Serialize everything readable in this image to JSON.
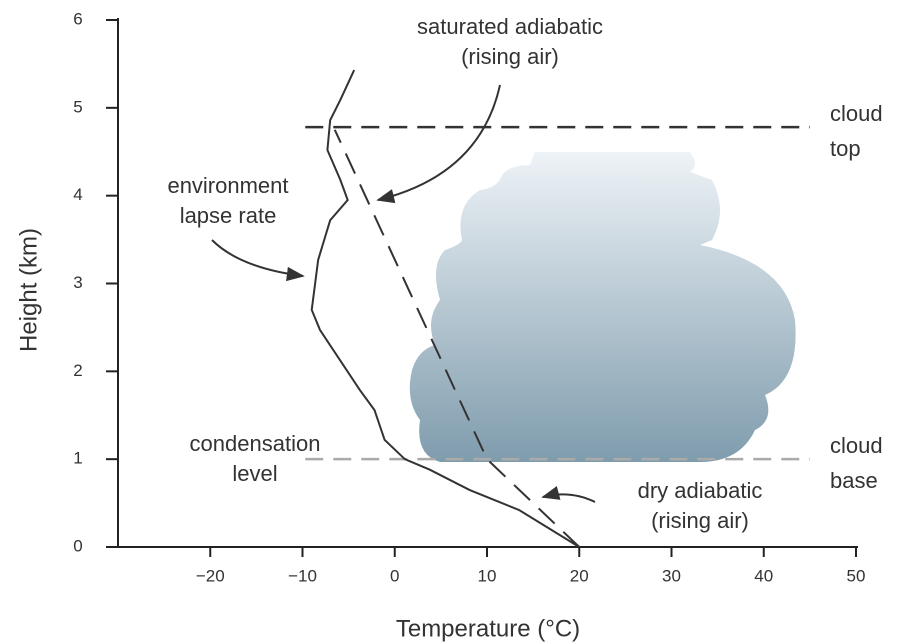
{
  "chart_data": {
    "type": "line",
    "xlabel": "Temperature (°C)",
    "ylabel": "Height (km)",
    "xlim": [
      -30,
      50
    ],
    "ylim": [
      0,
      6
    ],
    "xticks": [
      {
        "value": -20,
        "label": "−20"
      },
      {
        "value": -10,
        "label": "−10"
      },
      0,
      10,
      20,
      30,
      40,
      50
    ],
    "yticks": [
      0,
      1,
      2,
      3,
      4,
      5,
      6
    ],
    "series": [
      {
        "color": "#333333",
        "dashed": false,
        "x": [
          20,
          13.5,
          8.1,
          3.8,
          1.1,
          -1.1,
          -2.2,
          -3.8,
          -8.1,
          -9,
          -8.3,
          -7,
          -5.1,
          -5.9,
          -7.3,
          -7,
          -5.9,
          -4.4
        ],
        "values": [
          0,
          0.42,
          0.65,
          0.88,
          1.0,
          1.22,
          1.56,
          1.79,
          2.47,
          2.7,
          3.27,
          3.72,
          3.95,
          4.18,
          4.52,
          4.86,
          5.09,
          5.43
        ]
      },
      {
        "color": "#333333",
        "dashed": true,
        "x": [
          20,
          10,
          -6.5
        ],
        "values": [
          0,
          1,
          4.75
        ]
      }
    ],
    "hlines": [
      {
        "y": 4.78,
        "xlim": [
          -9.7,
          45
        ],
        "color": "#333333",
        "label": [
          "cloud",
          "top"
        ]
      },
      {
        "y": 1,
        "xlim": [
          -9.7,
          45
        ],
        "color": "#aaaaaa",
        "label": [
          "cloud",
          "base"
        ]
      }
    ],
    "annotations": [
      {
        "lines": [
          "saturated adiabatic",
          "(rising air)"
        ]
      },
      {
        "lines": [
          "environment",
          "lapse rate"
        ]
      },
      {
        "lines": [
          "condensation",
          "level"
        ]
      },
      {
        "lines": [
          "dry adiabatic",
          "(rising air)"
        ]
      }
    ]
  }
}
